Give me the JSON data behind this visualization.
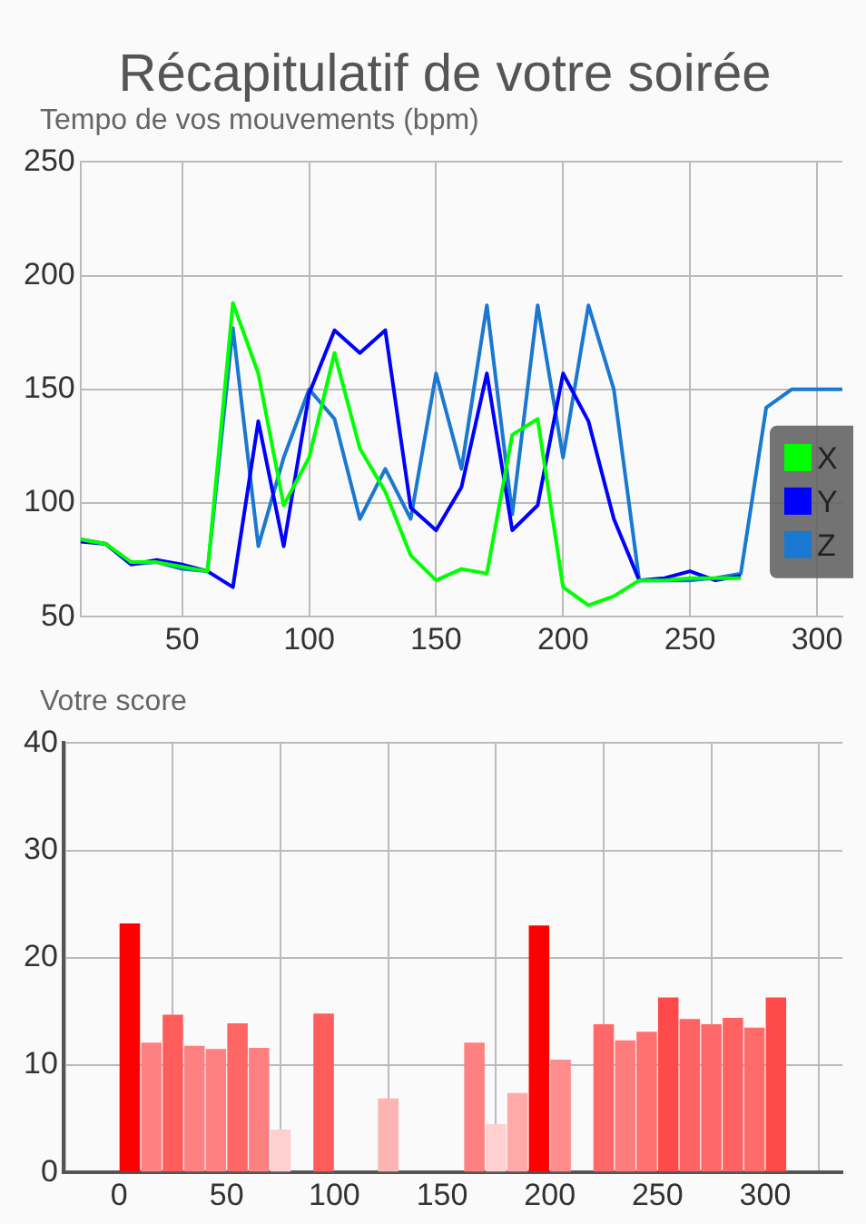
{
  "chart_data": [
    {
      "type": "line",
      "title": "Récapitulatif de votre soirée",
      "subtitle": "Tempo de vos mouvements (bpm)",
      "x": [
        10,
        20,
        30,
        40,
        50,
        60,
        70,
        80,
        90,
        100,
        110,
        120,
        130,
        140,
        150,
        160,
        170,
        180,
        190,
        200,
        210,
        220,
        230,
        240,
        250,
        260,
        270,
        280,
        290,
        300,
        310
      ],
      "series": [
        {
          "name": "X",
          "color": "#00ff00",
          "values": [
            84,
            82,
            74,
            74,
            72,
            70,
            188,
            157,
            99,
            120,
            166,
            124,
            105,
            77,
            66,
            71,
            69,
            130,
            137,
            63,
            55,
            59,
            66,
            66,
            67,
            67,
            67,
            null,
            null,
            null,
            null
          ]
        },
        {
          "name": "Y",
          "color": "#0000ff",
          "values": [
            83,
            82,
            73,
            75,
            73,
            70,
            63,
            136,
            81,
            148,
            176,
            166,
            176,
            98,
            88,
            107,
            157,
            88,
            99,
            157,
            136,
            93,
            66,
            67,
            70,
            66,
            68,
            null,
            null,
            null,
            null
          ]
        },
        {
          "name": "Z",
          "color": "#1a78d0",
          "values": [
            84,
            82,
            73,
            74,
            71,
            70,
            177,
            81,
            120,
            150,
            137,
            93,
            115,
            93,
            157,
            115,
            187,
            95,
            187,
            120,
            187,
            150,
            66,
            66,
            66,
            67,
            69,
            142,
            150,
            150,
            150
          ]
        }
      ],
      "xlim": [
        10,
        310
      ],
      "xticks": [
        50,
        100,
        150,
        200,
        250,
        300
      ],
      "ylim": [
        50,
        250
      ],
      "yticks": [
        50,
        100,
        150,
        200,
        250
      ],
      "grid": true,
      "legend": "right",
      "marker": "none",
      "line_style": "solid"
    },
    {
      "type": "bar",
      "title": "Votre score",
      "x": [
        5,
        15,
        25,
        35,
        45,
        55,
        65,
        75,
        95,
        125,
        165,
        175,
        185,
        195,
        205,
        225,
        235,
        245,
        255,
        265,
        275,
        285,
        295,
        305
      ],
      "values": [
        23.2,
        12.1,
        14.7,
        11.8,
        11.5,
        13.9,
        11.6,
        4.0,
        14.8,
        6.9,
        12.1,
        4.5,
        7.4,
        23.0,
        10.5,
        13.8,
        12.3,
        13.1,
        16.3,
        14.3,
        13.8,
        14.4,
        13.5,
        16.3
      ],
      "colors": [
        "#ff0000",
        "#ff8080",
        "#ff5c5c",
        "#ff8080",
        "#ff8080",
        "#ff6666",
        "#ff8080",
        "#ffd0d0",
        "#ff5c5c",
        "#ffb4b4",
        "#ff8080",
        "#ffd0d0",
        "#ffaaaa",
        "#ff0000",
        "#ff8c8c",
        "#ff6868",
        "#ff7c7c",
        "#ff7070",
        "#ff4a4a",
        "#ff6262",
        "#ff6868",
        "#ff6262",
        "#ff6a6a",
        "#ff4a4a"
      ],
      "xlim": [
        0,
        310
      ],
      "xticks": [
        0,
        50,
        100,
        150,
        200,
        250,
        300
      ],
      "ylim": [
        0,
        40
      ],
      "yticks": [
        0,
        10,
        20,
        30,
        40
      ],
      "grid": true
    }
  ]
}
